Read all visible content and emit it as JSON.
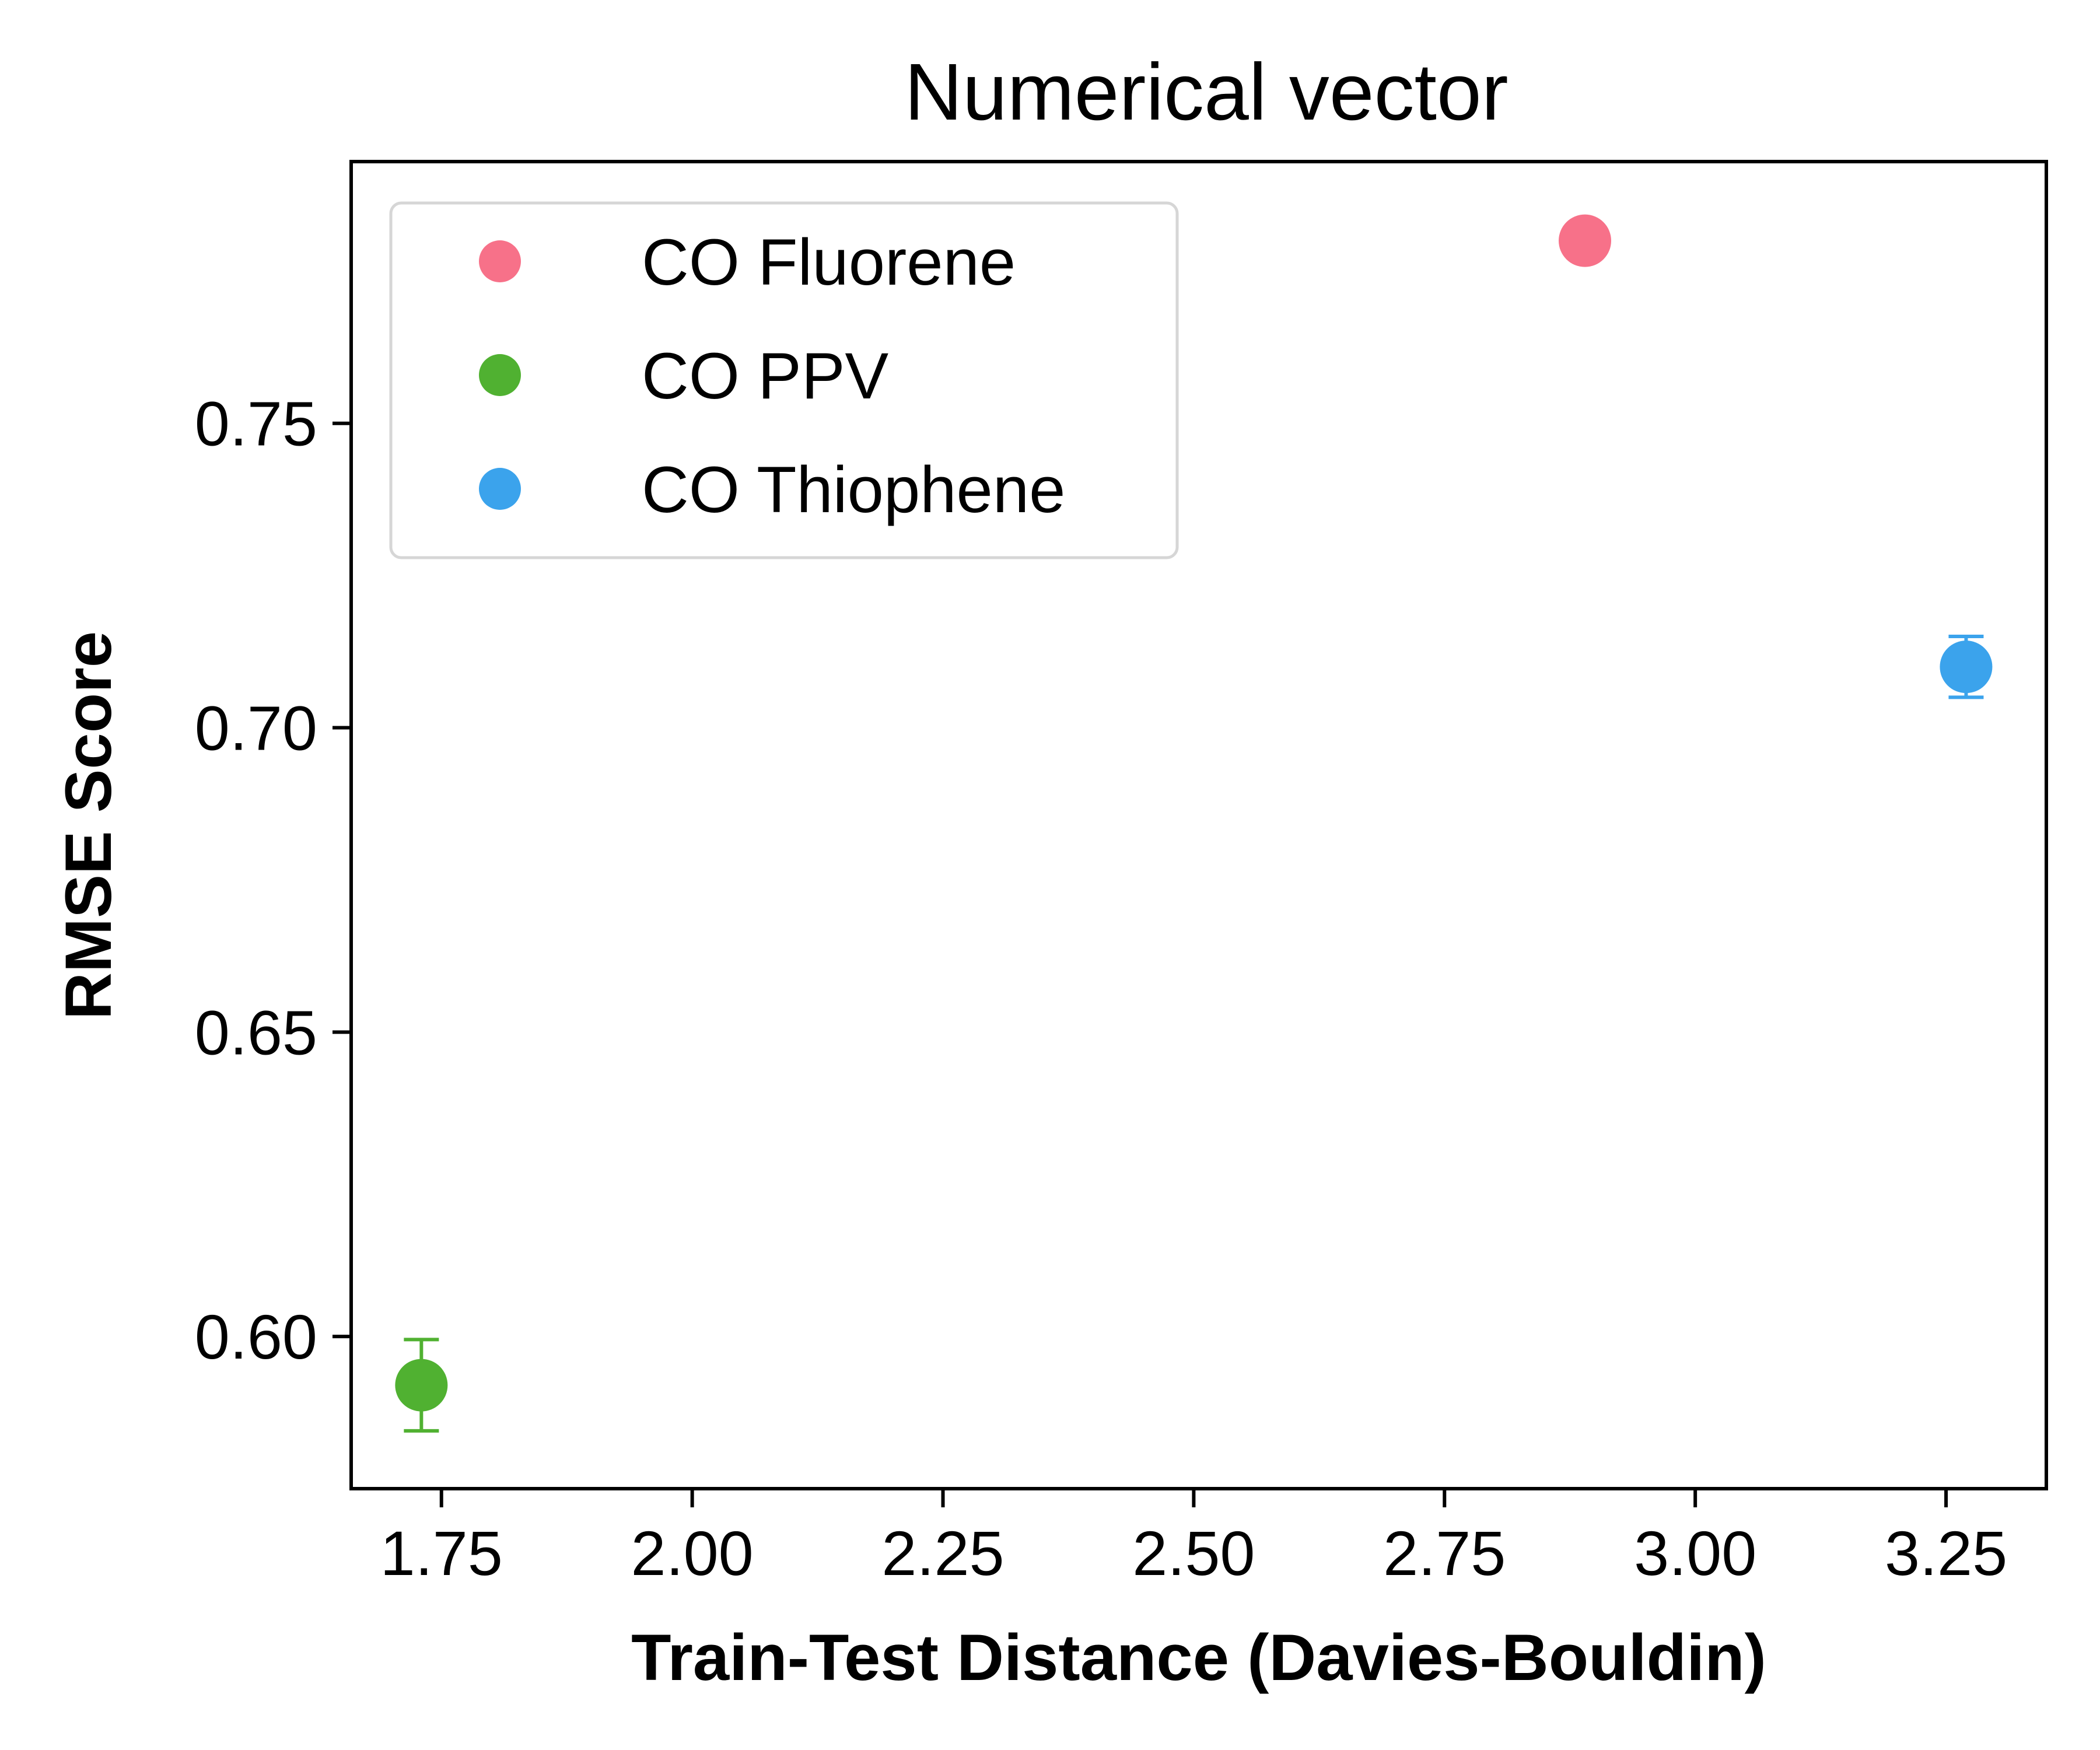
{
  "chart_data": {
    "type": "scatter",
    "title": "Numerical vector",
    "xlabel": "Train-Test Distance (Davies-Bouldin)",
    "ylabel": "RMSE Score",
    "xlim": [
      1.66,
      3.35
    ],
    "ylim": [
      0.575,
      0.793
    ],
    "xticks": [
      1.75,
      2.0,
      2.25,
      2.5,
      2.75,
      3.0,
      3.25
    ],
    "xtick_labels": [
      "1.75",
      "2.00",
      "2.25",
      "2.50",
      "2.75",
      "3.00",
      "3.25"
    ],
    "yticks": [
      0.6,
      0.65,
      0.7,
      0.75
    ],
    "ytick_labels": [
      "0.60",
      "0.65",
      "0.70",
      "0.75"
    ],
    "grid": false,
    "legend_position": "top-left",
    "series": [
      {
        "name": "CO Fluorene",
        "color": "#f77189",
        "x": 2.89,
        "y": 0.78,
        "err": 0.0
      },
      {
        "name": "CO PPV",
        "color": "#50b131",
        "x": 1.73,
        "y": 0.592,
        "err": 0.0075
      },
      {
        "name": "CO Thiophene",
        "color": "#3ba3ec",
        "x": 3.27,
        "y": 0.71,
        "err": 0.005
      }
    ]
  }
}
